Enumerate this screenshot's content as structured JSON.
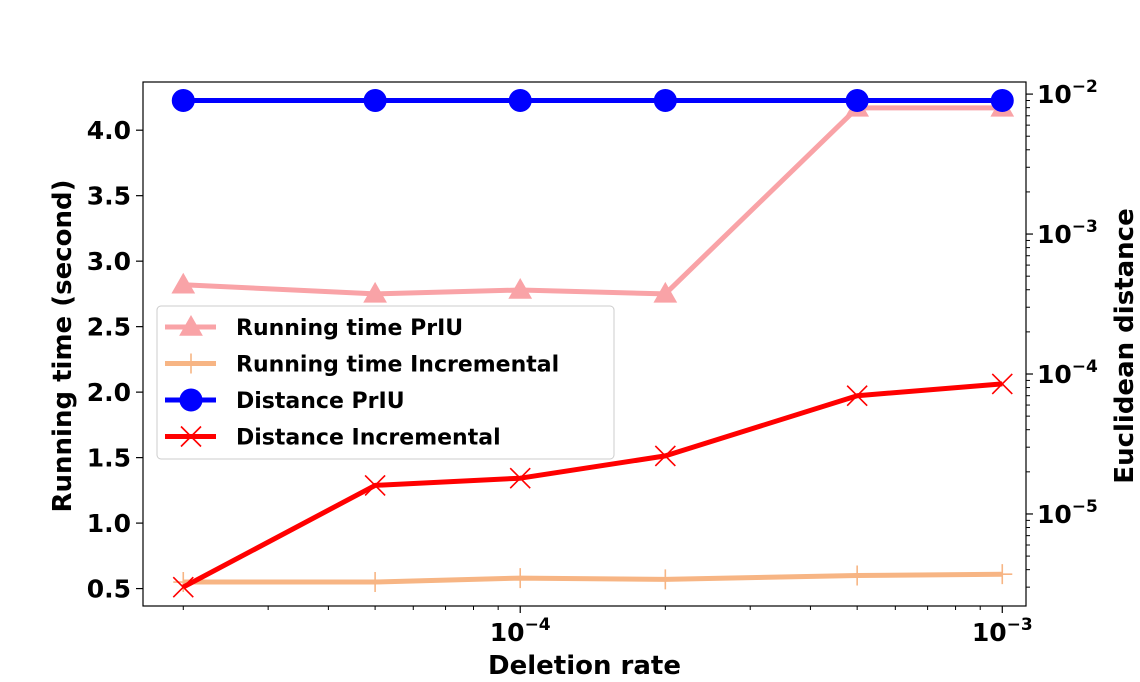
{
  "chart_data": {
    "type": "line",
    "xlabel": "Deletion rate",
    "ylabel_left": "Running time (second)",
    "ylabel_right": "Euclidean distance",
    "x_scale": "log",
    "y_right_scale": "log",
    "x": [
      2e-05,
      5e-05,
      0.0001,
      0.0002,
      0.0005,
      0.001
    ],
    "x_ticks": [
      {
        "value": 0.0001,
        "base": "10",
        "exp": "−4"
      },
      {
        "value": 0.001,
        "base": "10",
        "exp": "−3"
      }
    ],
    "y_left_ticks": [
      {
        "value": 0.5,
        "label": "0.5"
      },
      {
        "value": 1.0,
        "label": "1.0"
      },
      {
        "value": 1.5,
        "label": "1.5"
      },
      {
        "value": 2.0,
        "label": "2.0"
      },
      {
        "value": 2.5,
        "label": "2.5"
      },
      {
        "value": 3.0,
        "label": "3.0"
      },
      {
        "value": 3.5,
        "label": "3.5"
      },
      {
        "value": 4.0,
        "label": "4.0"
      }
    ],
    "y_right_ticks": [
      {
        "value": 1e-05,
        "base": "10",
        "exp": "−5"
      },
      {
        "value": 0.0001,
        "base": "10",
        "exp": "−4"
      },
      {
        "value": 0.001,
        "base": "10",
        "exp": "−3"
      },
      {
        "value": 0.01,
        "base": "10",
        "exp": "−2"
      }
    ],
    "series": [
      {
        "name": "Running time PrIU",
        "axis": "left",
        "color": "#f9a3a7",
        "marker": "triangle",
        "values": [
          2.82,
          2.75,
          2.78,
          2.75,
          4.17,
          4.17
        ]
      },
      {
        "name": "Running time Incremental",
        "axis": "left",
        "color": "#f7b584",
        "marker": "plus",
        "values": [
          0.55,
          0.55,
          0.58,
          0.57,
          0.6,
          0.61
        ]
      },
      {
        "name": "Distance PrIU",
        "axis": "right",
        "color": "#0000ff",
        "marker": "circle",
        "values": [
          0.009,
          0.009,
          0.009,
          0.009,
          0.009,
          0.009
        ]
      },
      {
        "name": "Distance Incremental",
        "axis": "right",
        "color": "#ff0000",
        "marker": "x",
        "values": [
          3e-06,
          1.6e-05,
          1.8e-05,
          2.6e-05,
          7e-05,
          8.5e-05
        ]
      }
    ],
    "legend_position": "center-left",
    "grid": false
  }
}
